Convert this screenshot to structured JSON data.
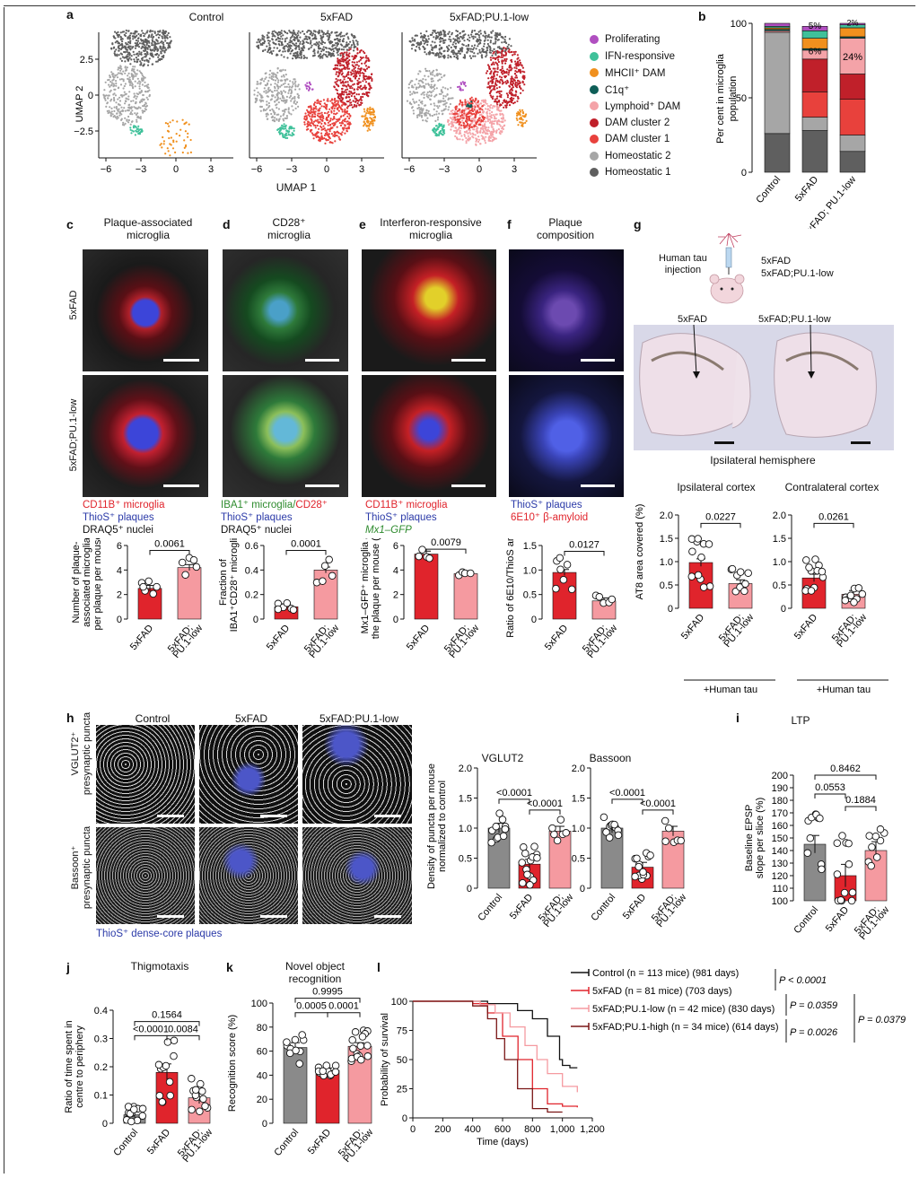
{
  "panels": {
    "a": {
      "letter": "a",
      "titles": [
        "Control",
        "5xFAD",
        "5xFAD;PU.1-low"
      ],
      "ylabel": "UMAP 2",
      "xlabel": "UMAP 1",
      "yticks": [
        "2.5",
        "0",
        "−2.5"
      ],
      "xticks": [
        "−6",
        "−3",
        "0",
        "3"
      ],
      "legend": [
        {
          "label": "Proliferating",
          "color": "#b04fc0"
        },
        {
          "label": "IFN-responsive",
          "color": "#3fc19a"
        },
        {
          "label": "MHCII⁺ DAM",
          "color": "#f0901e"
        },
        {
          "label": "C1q⁺",
          "color": "#0e5e57"
        },
        {
          "label": "Lymphoid⁺ DAM",
          "color": "#f4a3a8"
        },
        {
          "label": "DAM cluster 2",
          "color": "#c0202a"
        },
        {
          "label": "DAM cluster 1",
          "color": "#e8413c"
        },
        {
          "label": "Homeostatic 2",
          "color": "#a6a6a6"
        },
        {
          "label": "Homeostatic 1",
          "color": "#5f5f5f"
        }
      ]
    },
    "b": {
      "letter": "b",
      "ylabel": [
        "Per cent in microglia",
        "population"
      ],
      "yticks": [
        "100",
        "50",
        "0"
      ],
      "categories": [
        "Control",
        "5xFAD",
        "5xFAD; PU.1-low"
      ],
      "annotations": [
        "5%",
        "6%",
        "24%",
        "2%"
      ]
    },
    "c": {
      "letter": "c",
      "title": [
        "Plaque-associated",
        "microglia"
      ],
      "row_labels": [
        "5xFAD",
        "5xFAD;PU.1-low"
      ],
      "legend": [
        {
          "text": "CD11B⁺ microglia",
          "color": "#e0242c"
        },
        {
          "text": "ThioS⁺ plaques",
          "color": "#2b3aa8"
        },
        {
          "text": "DRAQ5⁺ nuclei",
          "color": "#111111"
        }
      ],
      "ylabel": [
        "Number of plaque-",
        "associated microglia",
        "per plaque per mouse"
      ],
      "pvalue": "0.0061",
      "yticks": [
        "6",
        "4",
        "2",
        "0"
      ],
      "categories": [
        "5xFAD",
        "5xFAD; PU.1-low"
      ]
    },
    "d": {
      "letter": "d",
      "title": [
        "CD28⁺",
        "microglia"
      ],
      "legend_line1a": "IBA1⁺ microglia/",
      "legend_line1b": "CD28⁺",
      "legend_line2": "ThioS⁺ plaques",
      "legend_line3": "DRAQ5⁺ nuclei",
      "ylabel": [
        "Fraction of",
        "IBA1⁺CD28⁺ microglia"
      ],
      "pvalue": "0.0001",
      "yticks": [
        "0.6",
        "0.4",
        "0.2",
        "0"
      ],
      "categories": [
        "5xFAD",
        "5xFAD; PU.1-low"
      ]
    },
    "e": {
      "letter": "e",
      "title": [
        "Interferon-responsive",
        "microglia"
      ],
      "legend": [
        {
          "text": "CD11B⁺ microglia",
          "color": "#e0242c"
        },
        {
          "text": "ThioS⁺ plaques",
          "color": "#2b3aa8"
        },
        {
          "text": "Mx1–GFP",
          "color": "#2e8b2e"
        }
      ],
      "ylabel": [
        "Mx1–GFP⁺ microglia at",
        "the plaque per mouse (%)"
      ],
      "pvalue": "0.0079",
      "yticks": [
        "6",
        "4",
        "2",
        "0"
      ],
      "categories": [
        "5xFAD",
        "5xFAD; PU.1-low"
      ]
    },
    "f": {
      "letter": "f",
      "title": [
        "Plaque",
        "composition"
      ],
      "legend": [
        {
          "text": "ThioS⁺ plaques",
          "color": "#2b3aa8"
        },
        {
          "text": "6E10⁺ β-amyloid",
          "color": "#e0242c"
        }
      ],
      "ylabel": [
        "Ratio of 6E10/ThioS area"
      ],
      "pvalue": "0.0127",
      "yticks": [
        "1.5",
        "1.0",
        "0.5",
        "0"
      ],
      "categories": [
        "5xFAD",
        "5xFAD; PU.1-low"
      ]
    },
    "g": {
      "letter": "g",
      "injection_label": [
        "Human tau",
        "injection"
      ],
      "groups": [
        "5xFAD",
        "5xFAD;PU.1-low"
      ],
      "section_labels": [
        "5xFAD",
        "5xFAD;PU.1-low"
      ],
      "section_caption": "Ipsilateral hemisphere",
      "chart_titles": [
        "Ipsilateral cortex",
        "Contralateral cortex"
      ],
      "pvalues": [
        "0.0227",
        "0.0261"
      ],
      "ylabel": "AT8 area covered (%)",
      "yticks": [
        "2.0",
        "1.5",
        "1.0",
        "0.5",
        "0"
      ],
      "categories": [
        "5xFAD",
        "5xFAD; PU.1-low"
      ],
      "footer": "+Human tau"
    },
    "h": {
      "letter": "h",
      "column_titles": [
        "Control",
        "5xFAD",
        "5xFAD;PU.1-low"
      ],
      "row_labels": [
        [
          "VGLUT2⁺",
          "presynaptic puncta"
        ],
        [
          "Bassoon⁺",
          "presynaptic puncta"
        ]
      ],
      "caption": "ThioS⁺ dense-core plaques",
      "chart_titles": [
        "VGLUT2",
        "Bassoon"
      ],
      "ylabel": [
        "Density of puncta per mouse",
        "normalized to control"
      ],
      "yticks": [
        "2.0",
        "1.5",
        "1.0",
        "0.5",
        "0"
      ],
      "pvalues": [
        "<0.0001",
        "<0.0001"
      ],
      "categories": [
        "Control",
        "5xFAD",
        "5xFAD; PU.1-low"
      ]
    },
    "i": {
      "letter": "i",
      "title": "LTP",
      "ylabel": [
        "Baseline EPSP",
        "slope per slice (%)"
      ],
      "yticks": [
        "200",
        "190",
        "180",
        "170",
        "160",
        "150",
        "140",
        "130",
        "120",
        "110",
        "100"
      ],
      "pvalues": [
        "0.8462",
        "0.0553",
        "0.1884"
      ],
      "categories": [
        "Control",
        "5xFAD",
        "5xFAD; PU.1-low"
      ]
    },
    "j": {
      "letter": "j",
      "title": "Thigmotaxis",
      "ylabel": [
        "Ratio of time spent in",
        "centre to periphery"
      ],
      "yticks": [
        "0.4",
        "0.3",
        "0.2",
        "0.1",
        "0"
      ],
      "pvalues": [
        "0.1564",
        "<0.0001",
        "0.0084"
      ],
      "categories": [
        "Control",
        "5xFAD",
        "5xFAD; PU.1-low"
      ]
    },
    "k": {
      "letter": "k",
      "title": [
        "Novel object",
        "recognition"
      ],
      "ylabel": "Recognition score (%)",
      "yticks": [
        "100",
        "80",
        "60",
        "40",
        "20",
        "0"
      ],
      "pvalues": [
        "0.9995",
        "0.0005",
        "0.0001"
      ],
      "categories": [
        "Control",
        "5xFAD",
        "5xFAD; PU.1-low"
      ]
    },
    "l": {
      "letter": "l",
      "ylabel": "Probability of survival",
      "xlabel": "Time (days)",
      "yticks": [
        "100",
        "75",
        "50",
        "25",
        "0"
      ],
      "xticks": [
        "0",
        "200",
        "400",
        "600",
        "800",
        "1,000",
        "1,200"
      ],
      "legend": [
        {
          "label": "Control (n = 113 mice) (981 days)",
          "color": "#111111"
        },
        {
          "label": "5xFAD (n = 81 mice) (703 days)",
          "color": "#e0242c"
        },
        {
          "label": "5xFAD;PU.1-low (n = 42 mice) (830 days)",
          "color": "#f59aa0"
        },
        {
          "label": "5xFAD;PU.1-high (n = 34 mice) (614 days)",
          "color": "#7a1616"
        }
      ],
      "stats": [
        "P < 0.0001",
        "P = 0.0359",
        "P = 0.0026",
        "P = 0.0379"
      ]
    }
  },
  "chart_data": [
    {
      "type": "bar",
      "panel": "b",
      "title": "",
      "categories": [
        "Control",
        "5xFAD",
        "5xFAD; PU.1-low"
      ],
      "ylim": [
        0,
        100
      ],
      "ylabel": "Per cent in microglia population",
      "series": [
        {
          "name": "Homeostatic 1",
          "values": [
            26,
            28,
            14
          ]
        },
        {
          "name": "Homeostatic 2",
          "values": [
            68,
            9,
            11
          ]
        },
        {
          "name": "DAM cluster 1",
          "values": [
            0,
            17,
            24
          ]
        },
        {
          "name": "DAM cluster 2",
          "values": [
            0,
            22,
            17
          ]
        },
        {
          "name": "Lymphoid⁺ DAM",
          "values": [
            1,
            6,
            24
          ]
        },
        {
          "name": "C1q⁺",
          "values": [
            1,
            1,
            1
          ]
        },
        {
          "name": "MHCII⁺ DAM",
          "values": [
            1,
            7,
            6
          ]
        },
        {
          "name": "IFN-responsive",
          "values": [
            1,
            5,
            2
          ]
        },
        {
          "name": "Proliferating",
          "values": [
            2,
            3,
            1
          ]
        }
      ]
    },
    {
      "type": "bar",
      "panel": "c",
      "categories": [
        "5xFAD",
        "5xFAD; PU.1-low"
      ],
      "values": [
        2.5,
        4.2
      ],
      "ylim": [
        0,
        6
      ]
    },
    {
      "type": "bar",
      "panel": "d",
      "categories": [
        "5xFAD",
        "5xFAD; PU.1-low"
      ],
      "values": [
        0.1,
        0.4
      ],
      "ylim": [
        0,
        0.6
      ]
    },
    {
      "type": "bar",
      "panel": "e",
      "categories": [
        "5xFAD",
        "5xFAD; PU.1-low"
      ],
      "values": [
        5.3,
        3.7
      ],
      "ylim": [
        0,
        6
      ]
    },
    {
      "type": "bar",
      "panel": "f",
      "categories": [
        "5xFAD",
        "5xFAD; PU.1-low"
      ],
      "values": [
        0.95,
        0.37
      ],
      "ylim": [
        0,
        1.5
      ]
    },
    {
      "type": "bar",
      "panel": "g-ipsilateral",
      "categories": [
        "5xFAD",
        "5xFAD; PU.1-low"
      ],
      "values": [
        0.98,
        0.53
      ],
      "ylim": [
        0,
        2.0
      ]
    },
    {
      "type": "bar",
      "panel": "g-contralateral",
      "categories": [
        "5xFAD",
        "5xFAD; PU.1-low"
      ],
      "values": [
        0.65,
        0.3
      ],
      "ylim": [
        0,
        2.0
      ]
    },
    {
      "type": "bar",
      "panel": "h-VGLUT2",
      "categories": [
        "Control",
        "5xFAD",
        "5xFAD; PU.1-low"
      ],
      "values": [
        1.0,
        0.4,
        0.95
      ],
      "ylim": [
        0,
        2.0
      ]
    },
    {
      "type": "bar",
      "panel": "h-Bassoon",
      "categories": [
        "Control",
        "5xFAD",
        "5xFAD; PU.1-low"
      ],
      "values": [
        1.0,
        0.35,
        0.95
      ],
      "ylim": [
        0,
        2.0
      ]
    },
    {
      "type": "bar",
      "panel": "i",
      "categories": [
        "Control",
        "5xFAD",
        "5xFAD; PU.1-low"
      ],
      "values": [
        145,
        120,
        140
      ],
      "ylim": [
        100,
        200
      ]
    },
    {
      "type": "bar",
      "panel": "j",
      "categories": [
        "Control",
        "5xFAD",
        "5xFAD; PU.1-low"
      ],
      "values": [
        0.03,
        0.18,
        0.09
      ],
      "ylim": [
        0,
        0.4
      ]
    },
    {
      "type": "bar",
      "panel": "k",
      "categories": [
        "Control",
        "5xFAD",
        "5xFAD; PU.1-low"
      ],
      "values": [
        63,
        44,
        64
      ],
      "ylim": [
        0,
        100
      ]
    },
    {
      "type": "line",
      "panel": "l",
      "xlabel": "Time (days)",
      "ylabel": "Probability of survival",
      "ylim": [
        0,
        100
      ],
      "xlim": [
        0,
        1200
      ],
      "series": [
        {
          "name": "Control (n = 113 mice) (981 days)",
          "x": [
            0,
            500,
            700,
            800,
            900,
            981,
            1000,
            1050,
            1100
          ],
          "y": [
            100,
            98,
            92,
            85,
            70,
            50,
            45,
            43,
            43
          ]
        },
        {
          "name": "5xFAD (n = 81 mice) (703 days)",
          "x": [
            0,
            400,
            500,
            600,
            703,
            800,
            900,
            1000,
            1100
          ],
          "y": [
            100,
            98,
            90,
            70,
            50,
            25,
            12,
            10,
            9
          ]
        },
        {
          "name": "5xFAD;PU.1-low (n = 42 mice) (830 days)",
          "x": [
            0,
            450,
            550,
            650,
            750,
            830,
            900,
            1000,
            1100
          ],
          "y": [
            100,
            97,
            90,
            78,
            62,
            50,
            38,
            27,
            22
          ]
        },
        {
          "name": "5xFAD;PU.1-high (n = 34 mice) (614 days)",
          "x": [
            0,
            400,
            500,
            560,
            614,
            700,
            800,
            900,
            1000
          ],
          "y": [
            100,
            96,
            85,
            68,
            50,
            25,
            8,
            5,
            5
          ]
        }
      ]
    }
  ]
}
